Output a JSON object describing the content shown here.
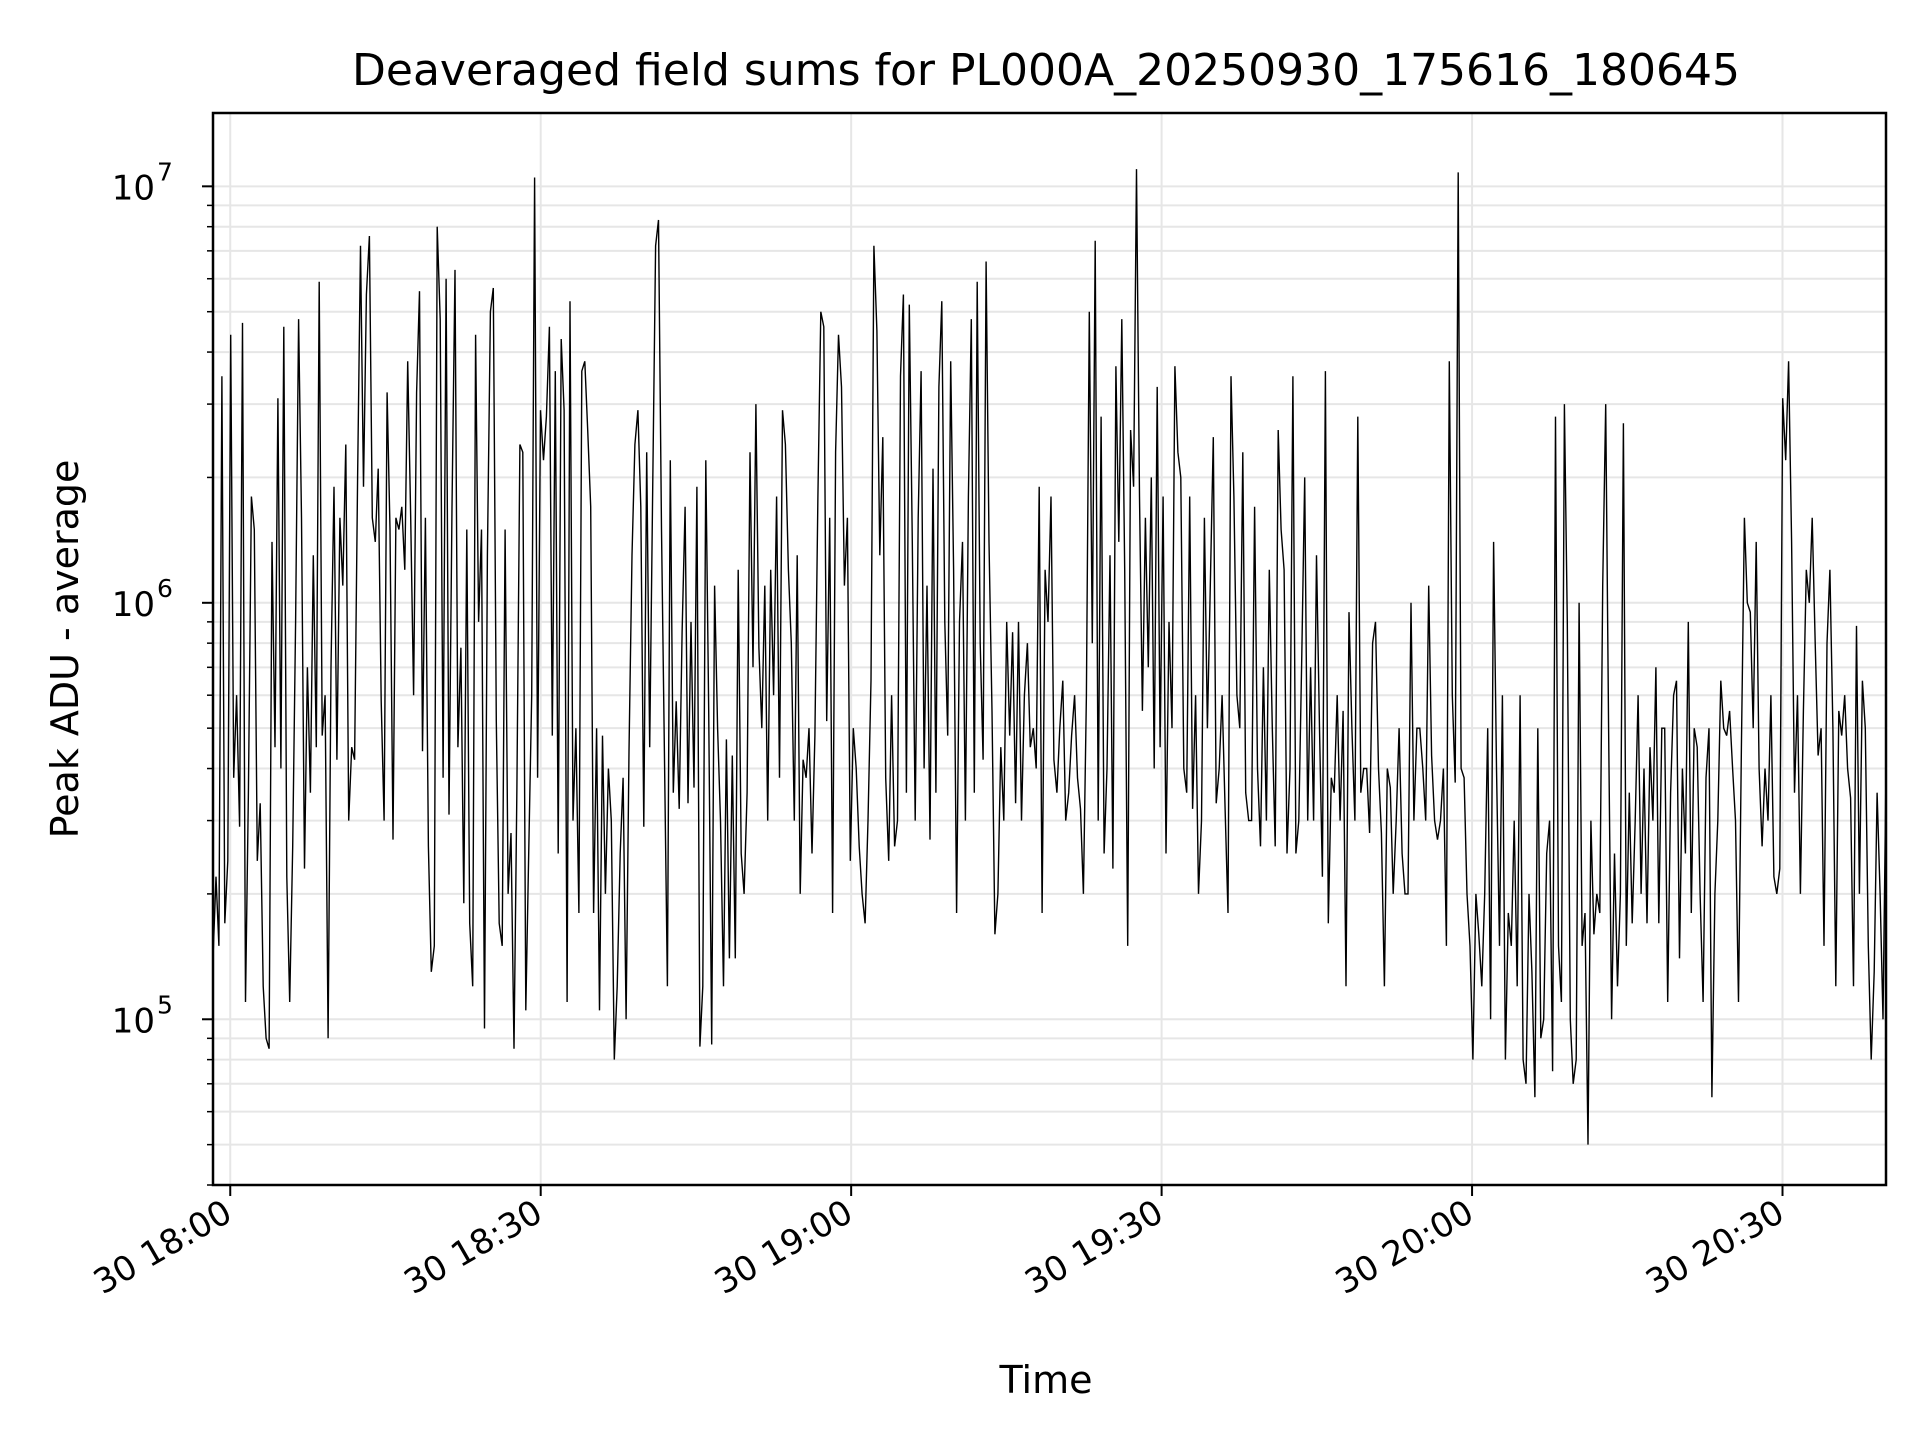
{
  "chart_data": {
    "type": "line",
    "title": "Deaveraged field sums for PL000A_20250930_175616_180645",
    "xlabel": "Time",
    "ylabel": "Peak ADU - average",
    "yscale": "log",
    "ylim": [
      40000,
      15000000
    ],
    "xlim": [
      "2025-09-30 17:58:20",
      "2025-09-30 20:40:00"
    ],
    "grid": true,
    "line_color": "#000000",
    "grid_color": "#e6e6e6",
    "x_ticks": [
      {
        "t": "2025-09-30 18:00",
        "label": "30 18:00"
      },
      {
        "t": "2025-09-30 18:30",
        "label": "30 18:30"
      },
      {
        "t": "2025-09-30 19:00",
        "label": "30 19:00"
      },
      {
        "t": "2025-09-30 19:30",
        "label": "30 19:30"
      },
      {
        "t": "2025-09-30 20:00",
        "label": "30 20:00"
      },
      {
        "t": "2025-09-30 20:30",
        "label": "30 20:30"
      }
    ],
    "y_ticks": [
      {
        "value": 100000,
        "base": "10",
        "exp": "5"
      },
      {
        "value": 1000000,
        "base": "10",
        "exp": "6"
      },
      {
        "value": 10000000,
        "base": "10",
        "exp": "7"
      }
    ],
    "series": [
      {
        "x_start": "2025-09-30 17:58:20",
        "x_end": "2025-09-30 20:40:00",
        "y": [
          140000,
          220000,
          150000,
          3500000,
          170000,
          240000,
          4400000,
          380000,
          600000,
          290000,
          4700000,
          110000,
          350000,
          1800000,
          1500000,
          240000,
          330000,
          120000,
          90000,
          85000,
          1400000,
          450000,
          3100000,
          400000,
          4600000,
          220000,
          110000,
          260000,
          900000,
          4800000,
          1600000,
          230000,
          700000,
          350000,
          1300000,
          450000,
          5900000,
          480000,
          600000,
          90000,
          700000,
          1900000,
          420000,
          1600000,
          1100000,
          2400000,
          300000,
          450000,
          420000,
          2000000,
          7200000,
          1900000,
          5500000,
          7600000,
          1600000,
          1400000,
          2100000,
          580000,
          300000,
          3200000,
          1500000,
          270000,
          1600000,
          1500000,
          1700000,
          1200000,
          3800000,
          1600000,
          600000,
          3200000,
          5600000,
          440000,
          1600000,
          260000,
          130000,
          150000,
          8000000,
          4800000,
          380000,
          6000000,
          310000,
          1700000,
          6300000,
          450000,
          780000,
          190000,
          1500000,
          170000,
          120000,
          4400000,
          900000,
          1500000,
          95000,
          1300000,
          5000000,
          5700000,
          520000,
          170000,
          150000,
          1500000,
          200000,
          280000,
          85000,
          360000,
          2400000,
          2300000,
          105000,
          250000,
          600000,
          10500000,
          380000,
          2900000,
          2200000,
          2800000,
          4600000,
          480000,
          3600000,
          250000,
          4300000,
          2900000,
          110000,
          5300000,
          300000,
          500000,
          180000,
          3600000,
          3800000,
          2600000,
          1700000,
          180000,
          500000,
          105000,
          480000,
          200000,
          400000,
          300000,
          80000,
          120000,
          250000,
          380000,
          100000,
          440000,
          1300000,
          2400000,
          2900000,
          1700000,
          290000,
          2300000,
          450000,
          1800000,
          7200000,
          8300000,
          1500000,
          440000,
          120000,
          2200000,
          350000,
          580000,
          320000,
          850000,
          1700000,
          330000,
          900000,
          360000,
          1900000,
          86000,
          120000,
          2200000,
          550000,
          87000,
          1100000,
          500000,
          300000,
          120000,
          470000,
          140000,
          430000,
          140000,
          1200000,
          250000,
          200000,
          350000,
          2300000,
          700000,
          3000000,
          780000,
          500000,
          1100000,
          300000,
          1200000,
          600000,
          1800000,
          380000,
          2900000,
          2400000,
          1200000,
          800000,
          300000,
          1300000,
          200000,
          420000,
          380000,
          500000,
          250000,
          480000,
          1800000,
          5000000,
          4600000,
          520000,
          1600000,
          180000,
          2300000,
          4400000,
          3300000,
          1100000,
          1600000,
          240000,
          500000,
          400000,
          260000,
          200000,
          170000,
          300000,
          650000,
          7200000,
          4500000,
          1300000,
          2500000,
          380000,
          240000,
          600000,
          260000,
          300000,
          3500000,
          5500000,
          350000,
          5200000,
          1400000,
          300000,
          1600000,
          3600000,
          400000,
          1100000,
          270000,
          2100000,
          350000,
          3300000,
          5300000,
          900000,
          480000,
          3800000,
          1200000,
          180000,
          900000,
          1400000,
          300000,
          1800000,
          4800000,
          350000,
          5900000,
          800000,
          420000,
          6600000,
          1400000,
          550000,
          160000,
          200000,
          450000,
          300000,
          900000,
          480000,
          850000,
          330000,
          900000,
          300000,
          600000,
          800000,
          450000,
          500000,
          400000,
          1900000,
          180000,
          1200000,
          900000,
          1800000,
          420000,
          350000,
          500000,
          650000,
          300000,
          350000,
          480000,
          600000,
          380000,
          320000,
          200000,
          600000,
          5000000,
          800000,
          7400000,
          300000,
          2800000,
          250000,
          400000,
          1300000,
          230000,
          3700000,
          1400000,
          4800000,
          1200000,
          150000,
          2600000,
          1900000,
          11000000,
          1800000,
          550000,
          1600000,
          700000,
          2000000,
          400000,
          3300000,
          450000,
          1800000,
          250000,
          900000,
          500000,
          3700000,
          2300000,
          2000000,
          400000,
          350000,
          1800000,
          320000,
          600000,
          200000,
          300000,
          1600000,
          500000,
          1100000,
          2500000,
          330000,
          400000,
          600000,
          320000,
          180000,
          3500000,
          1800000,
          600000,
          500000,
          2300000,
          350000,
          300000,
          300000,
          1700000,
          400000,
          260000,
          700000,
          300000,
          1200000,
          500000,
          260000,
          2600000,
          1500000,
          1200000,
          250000,
          400000,
          3500000,
          250000,
          300000,
          750000,
          2000000,
          300000,
          700000,
          300000,
          1300000,
          500000,
          220000,
          3600000,
          170000,
          380000,
          350000,
          600000,
          300000,
          550000,
          120000,
          950000,
          500000,
          300000,
          2800000,
          350000,
          400000,
          400000,
          280000,
          800000,
          900000,
          400000,
          280000,
          120000,
          400000,
          360000,
          200000,
          300000,
          500000,
          250000,
          200000,
          200000,
          1000000,
          300000,
          500000,
          500000,
          400000,
          300000,
          1100000,
          430000,
          300000,
          270000,
          300000,
          400000,
          150000,
          3800000,
          600000,
          370000,
          10800000,
          400000,
          380000,
          200000,
          150000,
          80000,
          200000,
          160000,
          120000,
          200000,
          500000,
          100000,
          1400000,
          400000,
          150000,
          600000,
          80000,
          180000,
          150000,
          300000,
          120000,
          600000,
          80000,
          70000,
          200000,
          130000,
          65000,
          500000,
          90000,
          100000,
          250000,
          300000,
          75000,
          2800000,
          150000,
          110000,
          3000000,
          900000,
          100000,
          70000,
          80000,
          1000000,
          150000,
          180000,
          50000,
          300000,
          160000,
          200000,
          180000,
          1100000,
          3000000,
          500000,
          100000,
          250000,
          120000,
          200000,
          2700000,
          150000,
          350000,
          170000,
          300000,
          600000,
          200000,
          400000,
          170000,
          450000,
          300000,
          700000,
          170000,
          500000,
          500000,
          110000,
          350000,
          600000,
          650000,
          140000,
          400000,
          250000,
          900000,
          180000,
          500000,
          450000,
          200000,
          110000,
          380000,
          500000,
          65000,
          200000,
          300000,
          650000,
          500000,
          480000,
          550000,
          400000,
          300000,
          110000,
          450000,
          1600000,
          1000000,
          950000,
          500000,
          1400000,
          400000,
          260000,
          400000,
          300000,
          600000,
          220000,
          200000,
          230000,
          3100000,
          2200000,
          3800000,
          1400000,
          350000,
          600000,
          200000,
          550000,
          1200000,
          1000000,
          1600000,
          800000,
          430000,
          500000,
          150000,
          800000,
          1200000,
          500000,
          120000,
          550000,
          480000,
          600000,
          400000,
          340000,
          120000,
          880000,
          200000,
          650000,
          500000,
          150000,
          80000,
          130000,
          350000,
          200000,
          100000,
          400000
        ]
      }
    ]
  }
}
